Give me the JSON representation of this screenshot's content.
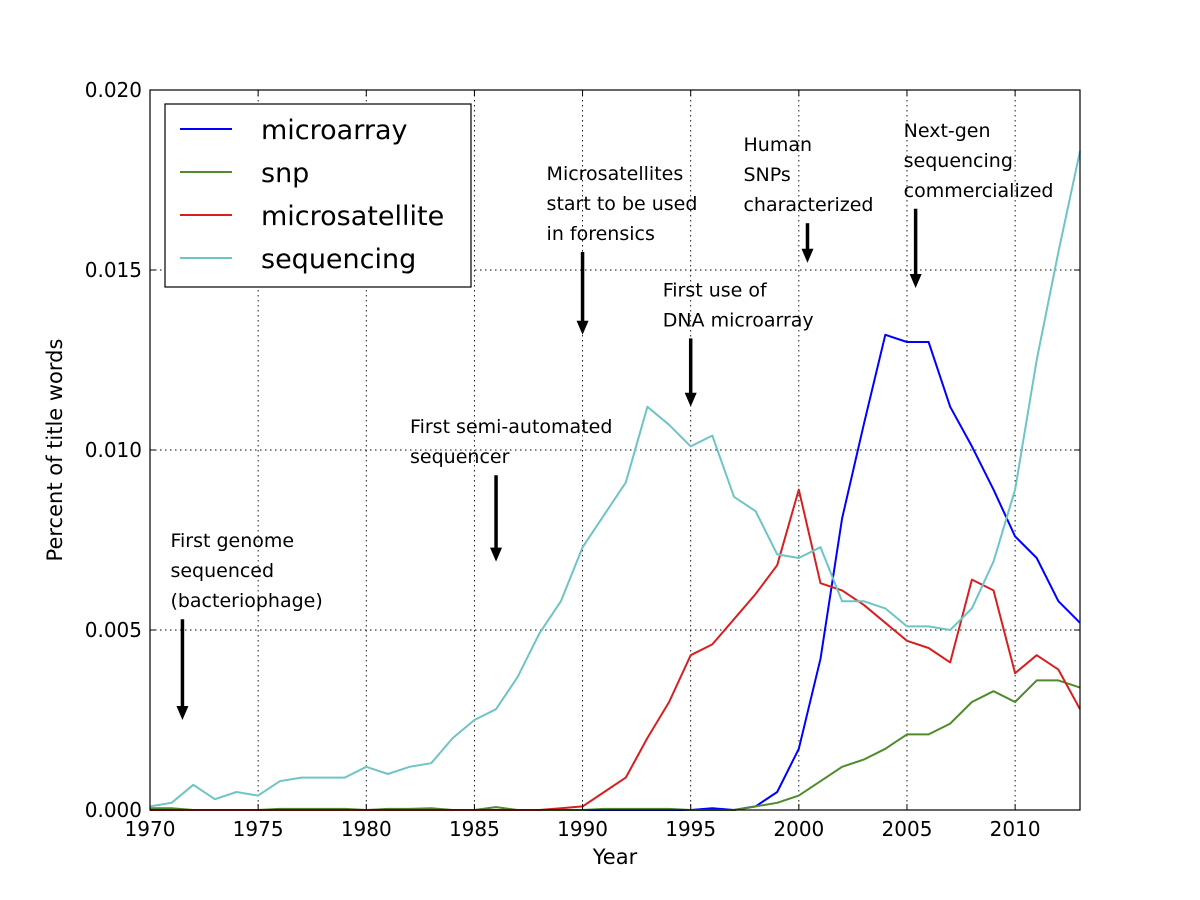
{
  "chart_data": {
    "type": "line",
    "title": "",
    "xlabel": "Year",
    "ylabel": "Percent of title words",
    "xlim": [
      1970,
      2013
    ],
    "ylim": [
      0,
      0.02
    ],
    "xticks": [
      "1970",
      "1975",
      "1980",
      "1985",
      "1990",
      "1995",
      "2000",
      "2005",
      "2010"
    ],
    "yticks": [
      "0.000",
      "0.005",
      "0.010",
      "0.015",
      "0.020"
    ],
    "grid": true,
    "legend_position": "top-left",
    "x": [
      1970,
      1971,
      1972,
      1973,
      1974,
      1975,
      1976,
      1977,
      1978,
      1979,
      1980,
      1981,
      1982,
      1983,
      1984,
      1985,
      1986,
      1987,
      1988,
      1989,
      1990,
      1991,
      1992,
      1993,
      1994,
      1995,
      1996,
      1997,
      1998,
      1999,
      2000,
      2001,
      2002,
      2003,
      2004,
      2005,
      2006,
      2007,
      2008,
      2009,
      2010,
      2011,
      2012,
      2013
    ],
    "series": [
      {
        "name": "microarray",
        "color": "#0000ff",
        "values": [
          0,
          0,
          0,
          0,
          0,
          0,
          0,
          0,
          0,
          0,
          0,
          0,
          0,
          0,
          0,
          0,
          0,
          0,
          0,
          0,
          0,
          0,
          0,
          0,
          0,
          0,
          5e-05,
          0,
          0.0001,
          0.0005,
          0.0017,
          0.0042,
          0.0081,
          0.0107,
          0.0132,
          0.013,
          0.013,
          0.0112,
          0.0101,
          0.0089,
          0.0076,
          0.007,
          0.0058,
          0.0052
        ]
      },
      {
        "name": "snp",
        "color": "#4f8a2c",
        "values": [
          5e-05,
          5e-05,
          0,
          0,
          0,
          0,
          3e-05,
          3e-05,
          3e-05,
          3e-05,
          0,
          3e-05,
          3e-05,
          5e-05,
          0,
          0,
          8e-05,
          0,
          0,
          0,
          0,
          3e-05,
          3e-05,
          3e-05,
          3e-05,
          0,
          0,
          0,
          0.0001,
          0.0002,
          0.0004,
          0.0008,
          0.0012,
          0.0014,
          0.0017,
          0.0021,
          0.0021,
          0.0024,
          0.003,
          0.0033,
          0.003,
          0.0036,
          0.0036,
          0.0034
        ]
      },
      {
        "name": "microsatellite",
        "color": "#d62020",
        "values": [
          0,
          0,
          0,
          0,
          0,
          0,
          0,
          0,
          0,
          0,
          0,
          0,
          0,
          0,
          0,
          0,
          0,
          0,
          0,
          5e-05,
          0.0001,
          0.0005,
          0.0009,
          0.002,
          0.003,
          0.0043,
          0.0046,
          0.0053,
          0.006,
          0.0068,
          0.0089,
          0.0063,
          0.0061,
          0.0057,
          0.0052,
          0.0047,
          0.0045,
          0.0041,
          0.0064,
          0.0061,
          0.0038,
          0.0043,
          0.0039,
          0.0028
        ]
      },
      {
        "name": "sequencing",
        "color": "#6fc4c4",
        "values": [
          0.0001,
          0.0002,
          0.0007,
          0.0003,
          0.0005,
          0.0004,
          0.0008,
          0.0009,
          0.0009,
          0.0009,
          0.0012,
          0.001,
          0.0012,
          0.0013,
          0.002,
          0.0025,
          0.0028,
          0.0037,
          0.0049,
          0.0058,
          0.0073,
          0.0082,
          0.0091,
          0.0112,
          0.0107,
          0.0101,
          0.0104,
          0.0087,
          0.0083,
          0.0071,
          0.007,
          0.0073,
          0.0058,
          0.0058,
          0.0056,
          0.0051,
          0.0051,
          0.005,
          0.0056,
          0.0069,
          0.0089,
          0.0125,
          0.0155,
          0.0183
        ]
      }
    ],
    "annotations": [
      {
        "lines": [
          "First genome",
          "sequenced",
          "(bacteriophage)"
        ],
        "arrow_x": 1971.5,
        "arrow_from": 0.0053,
        "arrow_to": 0.0025
      },
      {
        "lines": [
          "First semi-automated",
          "sequencer"
        ],
        "arrow_x": 1986,
        "arrow_from": 0.0093,
        "arrow_to": 0.0069
      },
      {
        "lines": [
          "Microsatellites",
          "start to be used",
          "in forensics"
        ],
        "arrow_x": 1990,
        "arrow_from": 0.0155,
        "arrow_to": 0.0132
      },
      {
        "lines": [
          "First use of",
          "DNA microarray"
        ],
        "arrow_x": 1995,
        "arrow_from": 0.0131,
        "arrow_to": 0.0112
      },
      {
        "lines": [
          "Human",
          "SNPs",
          "characterized"
        ],
        "arrow_x": 2000.4,
        "arrow_from": 0.0163,
        "arrow_to": 0.0152
      },
      {
        "lines": [
          "Next-gen",
          "sequencing",
          "commercialized"
        ],
        "arrow_x": 2005.4,
        "arrow_from": 0.0167,
        "arrow_to": 0.0145
      }
    ]
  }
}
